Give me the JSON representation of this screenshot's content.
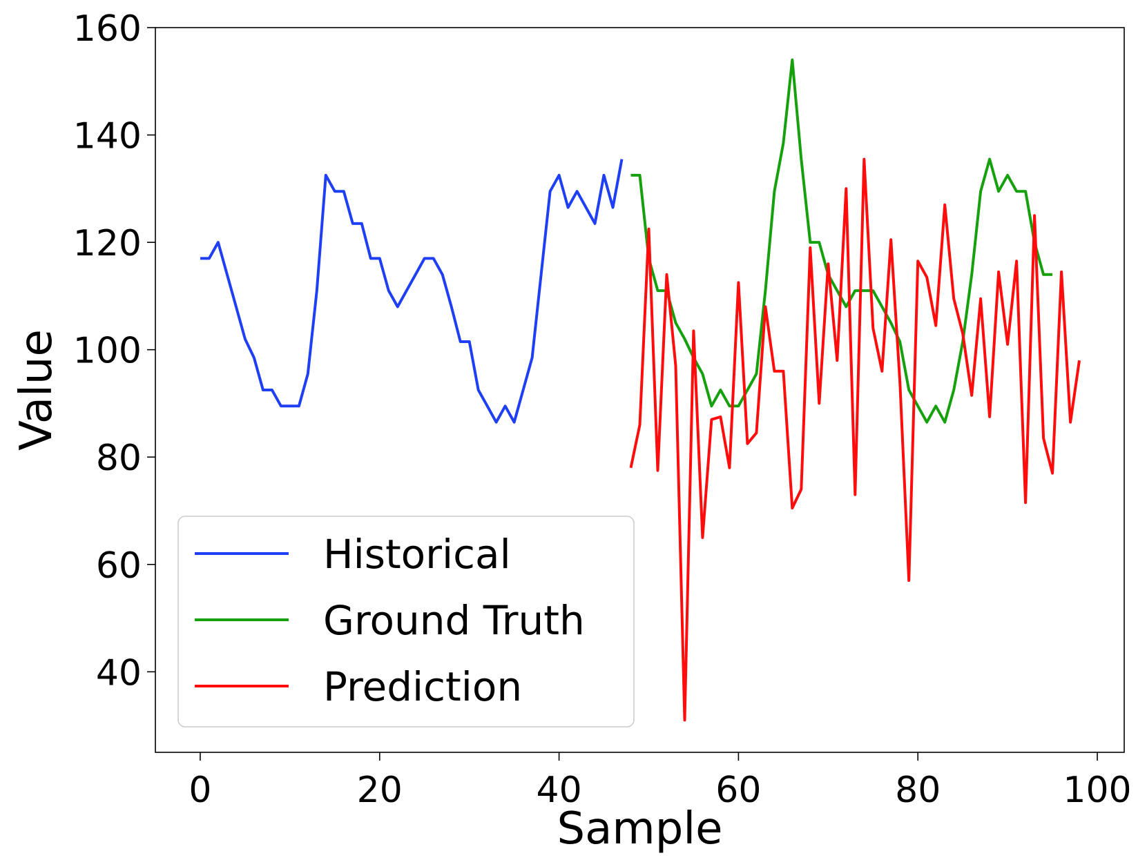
{
  "chart_data": {
    "type": "line",
    "xlabel": "Sample",
    "ylabel": "Value",
    "xlim": [
      -5,
      103
    ],
    "ylim": [
      25,
      160
    ],
    "xticks": [
      0,
      20,
      40,
      60,
      80,
      100
    ],
    "yticks": [
      40,
      60,
      80,
      100,
      120,
      140,
      160
    ],
    "grid": false,
    "legend_position": "lower-left",
    "series": [
      {
        "name": "Historical",
        "color": "#1f3ff5",
        "x": [
          0,
          1,
          2,
          3,
          4,
          5,
          6,
          7,
          8,
          9,
          10,
          11,
          12,
          13,
          14,
          15,
          16,
          17,
          18,
          19,
          20,
          21,
          22,
          23,
          24,
          25,
          26,
          27,
          28,
          29,
          30,
          31,
          32,
          33,
          34,
          35,
          36,
          37,
          38,
          39,
          40,
          41,
          42,
          43,
          44,
          45,
          46,
          47
        ],
        "y": [
          117,
          117,
          120,
          114,
          108,
          102,
          98.5,
          92.5,
          92.5,
          89.5,
          89.5,
          89.5,
          95.5,
          111,
          132.5,
          129.5,
          129.5,
          123.5,
          123.5,
          117,
          117,
          111,
          108,
          111,
          114,
          117,
          117,
          114,
          108,
          101.5,
          101.5,
          92.5,
          89.5,
          86.5,
          89.5,
          86.5,
          92.5,
          98.5,
          114,
          129.5,
          132.5,
          126.5,
          129.5,
          126.5,
          123.5,
          132.5,
          126.5,
          135.5
        ]
      },
      {
        "name": "Ground Truth",
        "color": "#17a00e",
        "x": [
          48,
          49,
          50,
          51,
          52,
          53,
          54,
          55,
          56,
          57,
          58,
          59,
          60,
          61,
          62,
          63,
          64,
          65,
          66,
          67,
          68,
          69,
          70,
          71,
          72,
          73,
          74,
          75,
          76,
          77,
          78,
          79,
          80,
          81,
          82,
          83,
          84,
          85,
          86,
          87,
          88,
          89,
          90,
          91,
          92,
          93,
          94,
          95
        ],
        "y": [
          132.5,
          132.5,
          117,
          111,
          111,
          105,
          102,
          98.5,
          95.5,
          89.5,
          92.5,
          89.5,
          89.5,
          92.5,
          95.5,
          111,
          129.5,
          138.5,
          154,
          135.5,
          120,
          120,
          114,
          111,
          108,
          111,
          111,
          111,
          108,
          105,
          101.5,
          92.5,
          89.5,
          86.5,
          89.5,
          86.5,
          92.5,
          101.5,
          114,
          129.5,
          135.5,
          129.5,
          132.5,
          129.5,
          129.5,
          120,
          114,
          114
        ]
      },
      {
        "name": "Prediction",
        "color": "#ff0d0d",
        "x": [
          48,
          49,
          50,
          51,
          52,
          53,
          54,
          55,
          56,
          57,
          58,
          59,
          60,
          61,
          62,
          63,
          64,
          65,
          66,
          67,
          68,
          69,
          70,
          71,
          72,
          73,
          74,
          75,
          76,
          77,
          78,
          79,
          80,
          81,
          82,
          83,
          84,
          85,
          86,
          87,
          88,
          89,
          90,
          91,
          92,
          93,
          94,
          95,
          96,
          97,
          98
        ],
        "y": [
          78,
          86,
          122.5,
          77.5,
          114,
          97,
          31,
          103.5,
          65,
          87,
          87.5,
          78,
          112.5,
          82.5,
          84.5,
          108,
          96,
          96,
          70.5,
          74,
          119,
          90,
          116,
          98,
          130,
          73,
          135.5,
          104,
          96,
          120.5,
          94,
          57,
          116.5,
          113.5,
          104.5,
          127,
          109.5,
          103,
          91.5,
          109.5,
          87.5,
          114.5,
          101,
          116.5,
          71.5,
          125,
          83.5,
          77,
          114.5,
          86.5,
          98
        ]
      }
    ]
  }
}
